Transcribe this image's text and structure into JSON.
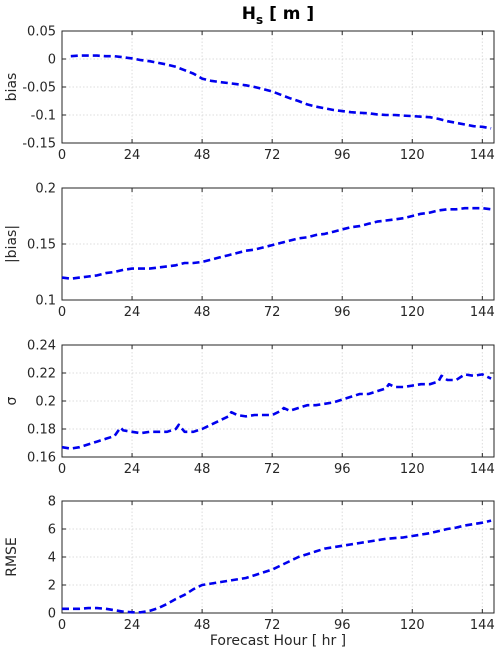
{
  "figure": {
    "title_main": "H",
    "title_sub": "s",
    "title_rest": " [ m ]",
    "xlabel": "Forecast Hour [ hr ]",
    "series_color": "#0000ee"
  },
  "chart_data": [
    {
      "type": "line",
      "ylabel": "bias",
      "ylim": [
        -0.15,
        0.05
      ],
      "yticks": [
        "0.05",
        "0",
        "-0.05",
        "-0.1",
        "-0.15"
      ],
      "ytick_values": [
        0.05,
        0,
        -0.05,
        -0.1,
        -0.15
      ],
      "xlim": [
        0,
        148
      ],
      "xticks": [
        "0",
        "24",
        "48",
        "72",
        "96",
        "120",
        "144"
      ],
      "xtick_values": [
        0,
        24,
        48,
        72,
        96,
        120,
        144
      ],
      "grid": true,
      "line_style": "dashed",
      "x": [
        3,
        6,
        9,
        12,
        15,
        18,
        21,
        24,
        27,
        30,
        33,
        36,
        39,
        42,
        45,
        48,
        51,
        54,
        57,
        60,
        63,
        66,
        69,
        72,
        75,
        78,
        81,
        84,
        87,
        90,
        93,
        96,
        99,
        102,
        105,
        108,
        111,
        114,
        117,
        120,
        123,
        126,
        129,
        132,
        135,
        138,
        141,
        144,
        147
      ],
      "y": [
        0.005,
        0.006,
        0.006,
        0.006,
        0.005,
        0.005,
        0.003,
        0.001,
        -0.002,
        -0.004,
        -0.007,
        -0.01,
        -0.014,
        -0.02,
        -0.026,
        -0.035,
        -0.039,
        -0.041,
        -0.043,
        -0.045,
        -0.047,
        -0.05,
        -0.054,
        -0.058,
        -0.064,
        -0.07,
        -0.075,
        -0.081,
        -0.085,
        -0.088,
        -0.091,
        -0.093,
        -0.095,
        -0.096,
        -0.097,
        -0.099,
        -0.1,
        -0.1,
        -0.101,
        -0.102,
        -0.103,
        -0.104,
        -0.107,
        -0.111,
        -0.114,
        -0.117,
        -0.12,
        -0.121,
        -0.124
      ]
    },
    {
      "type": "line",
      "ylabel": "|bias|",
      "ylim": [
        0.1,
        0.2
      ],
      "yticks": [
        "0.2",
        "0.15",
        "0.1"
      ],
      "ytick_values": [
        0.2,
        0.15,
        0.1
      ],
      "xlim": [
        0,
        148
      ],
      "xticks": [
        "0",
        "24",
        "48",
        "72",
        "96",
        "120",
        "144"
      ],
      "xtick_values": [
        0,
        24,
        48,
        72,
        96,
        120,
        144
      ],
      "grid": true,
      "line_style": "dashed",
      "x": [
        0,
        3,
        6,
        9,
        12,
        15,
        18,
        21,
        24,
        27,
        30,
        33,
        36,
        39,
        42,
        45,
        48,
        51,
        54,
        57,
        60,
        63,
        66,
        69,
        72,
        75,
        78,
        81,
        84,
        87,
        90,
        93,
        96,
        99,
        102,
        105,
        108,
        111,
        114,
        117,
        120,
        123,
        126,
        129,
        132,
        135,
        138,
        141,
        144,
        147
      ],
      "y": [
        0.12,
        0.119,
        0.12,
        0.121,
        0.122,
        0.124,
        0.125,
        0.127,
        0.128,
        0.128,
        0.128,
        0.129,
        0.13,
        0.131,
        0.133,
        0.133,
        0.134,
        0.136,
        0.138,
        0.14,
        0.142,
        0.144,
        0.145,
        0.147,
        0.149,
        0.151,
        0.153,
        0.155,
        0.156,
        0.158,
        0.159,
        0.161,
        0.163,
        0.165,
        0.166,
        0.168,
        0.17,
        0.171,
        0.172,
        0.173,
        0.175,
        0.177,
        0.178,
        0.18,
        0.181,
        0.181,
        0.182,
        0.182,
        0.182,
        0.181
      ]
    },
    {
      "type": "line",
      "ylabel": "σ",
      "ylim": [
        0.16,
        0.24
      ],
      "yticks": [
        "0.24",
        "0.22",
        "0.2",
        "0.18",
        "0.16"
      ],
      "ytick_values": [
        0.24,
        0.22,
        0.2,
        0.18,
        0.16
      ],
      "xlim": [
        0,
        148
      ],
      "xticks": [
        "0",
        "24",
        "48",
        "72",
        "96",
        "120",
        "144"
      ],
      "xtick_values": [
        0,
        24,
        48,
        72,
        96,
        120,
        144
      ],
      "grid": true,
      "line_style": "dashed",
      "x": [
        0,
        3,
        6,
        9,
        12,
        15,
        18,
        20,
        21,
        24,
        27,
        30,
        33,
        36,
        39,
        40,
        42,
        45,
        48,
        51,
        54,
        57,
        58,
        60,
        63,
        66,
        69,
        72,
        75,
        76,
        78,
        81,
        84,
        87,
        90,
        93,
        96,
        99,
        102,
        105,
        108,
        111,
        112,
        114,
        117,
        120,
        123,
        126,
        129,
        130,
        132,
        135,
        138,
        141,
        144,
        147
      ],
      "y": [
        0.167,
        0.166,
        0.167,
        0.169,
        0.171,
        0.173,
        0.175,
        0.181,
        0.179,
        0.178,
        0.177,
        0.178,
        0.178,
        0.178,
        0.18,
        0.183,
        0.178,
        0.178,
        0.18,
        0.183,
        0.186,
        0.189,
        0.192,
        0.19,
        0.189,
        0.19,
        0.19,
        0.19,
        0.193,
        0.195,
        0.193,
        0.195,
        0.197,
        0.197,
        0.198,
        0.199,
        0.201,
        0.203,
        0.205,
        0.205,
        0.207,
        0.209,
        0.212,
        0.21,
        0.21,
        0.211,
        0.212,
        0.212,
        0.214,
        0.218,
        0.215,
        0.215,
        0.219,
        0.218,
        0.219,
        0.216
      ]
    },
    {
      "type": "line",
      "ylabel": "RMSE",
      "ylim": [
        0,
        8
      ],
      "yticks": [
        "8",
        "6",
        "4",
        "2",
        "0"
      ],
      "ytick_values": [
        8,
        6,
        4,
        2,
        0
      ],
      "xlim": [
        0,
        148
      ],
      "xticks": [
        "0",
        "24",
        "48",
        "72",
        "96",
        "120",
        "144"
      ],
      "xtick_values": [
        0,
        24,
        48,
        72,
        96,
        120,
        144
      ],
      "grid": true,
      "line_style": "dashed",
      "x": [
        0,
        3,
        6,
        9,
        12,
        15,
        18,
        21,
        24,
        27,
        30,
        33,
        36,
        39,
        42,
        45,
        48,
        51,
        54,
        57,
        60,
        63,
        66,
        69,
        72,
        75,
        78,
        81,
        84,
        87,
        90,
        93,
        96,
        99,
        102,
        105,
        108,
        111,
        114,
        117,
        120,
        123,
        126,
        129,
        132,
        135,
        138,
        141,
        144,
        147
      ],
      "y": [
        0.3,
        0.3,
        0.3,
        0.35,
        0.35,
        0.3,
        0.2,
        0.1,
        0.05,
        0.05,
        0.15,
        0.35,
        0.65,
        1.0,
        1.3,
        1.7,
        2.0,
        2.1,
        2.2,
        2.3,
        2.4,
        2.5,
        2.7,
        2.9,
        3.1,
        3.4,
        3.7,
        4.0,
        4.2,
        4.4,
        4.6,
        4.7,
        4.8,
        4.9,
        5.0,
        5.1,
        5.2,
        5.3,
        5.35,
        5.4,
        5.5,
        5.6,
        5.7,
        5.85,
        6.0,
        6.1,
        6.25,
        6.35,
        6.45,
        6.6
      ]
    }
  ]
}
